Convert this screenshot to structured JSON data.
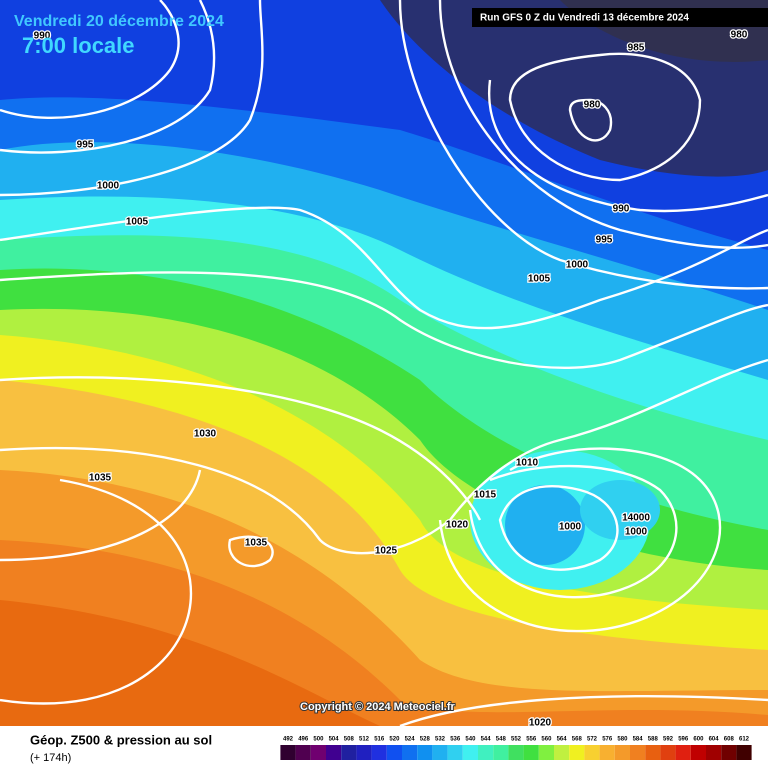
{
  "header": {
    "date": "Vendredi 20 décembre 2024",
    "time": "7:00 locale",
    "run": "Run GFS 0 Z du Vendredi 13 décembre 2024"
  },
  "map": {
    "isobar_labels": [
      "990",
      "995",
      "1000",
      "1005",
      "985",
      "980",
      "980",
      "990",
      "995",
      "1000",
      "1005",
      "1030",
      "1035",
      "1035",
      "1025",
      "1020",
      "1015",
      "1010",
      "1000",
      "14000",
      "1000",
      "1020"
    ],
    "copyright": "Copyright © 2024 Meteociel.fr"
  },
  "footer": {
    "title": "Géop. Z500 & pression au sol",
    "lead": "(+ 174h)",
    "scale": {
      "labels": [
        "492",
        "496",
        "500",
        "504",
        "508",
        "512",
        "516",
        "520",
        "524",
        "528",
        "532",
        "536",
        "540",
        "544",
        "548",
        "552",
        "556",
        "560",
        "564",
        "568",
        "572",
        "576",
        "580",
        "584",
        "588",
        "592",
        "596",
        "600",
        "604",
        "608",
        "612"
      ],
      "colors": [
        "#300030",
        "#500050",
        "#700070",
        "#400090",
        "#2020a0",
        "#2020c0",
        "#2030e0",
        "#1050f0",
        "#1070f0",
        "#1090f0",
        "#20b0f0",
        "#30d0f0",
        "#40f0f0",
        "#40f0c0",
        "#40f0a0",
        "#40e060",
        "#40e040",
        "#80f040",
        "#c0f040",
        "#f0f020",
        "#f8d030",
        "#f8b030",
        "#f49a2a",
        "#f08020",
        "#e86010",
        "#e04010",
        "#e02010",
        "#c00000",
        "#a00000",
        "#700000",
        "#400000"
      ]
    }
  }
}
